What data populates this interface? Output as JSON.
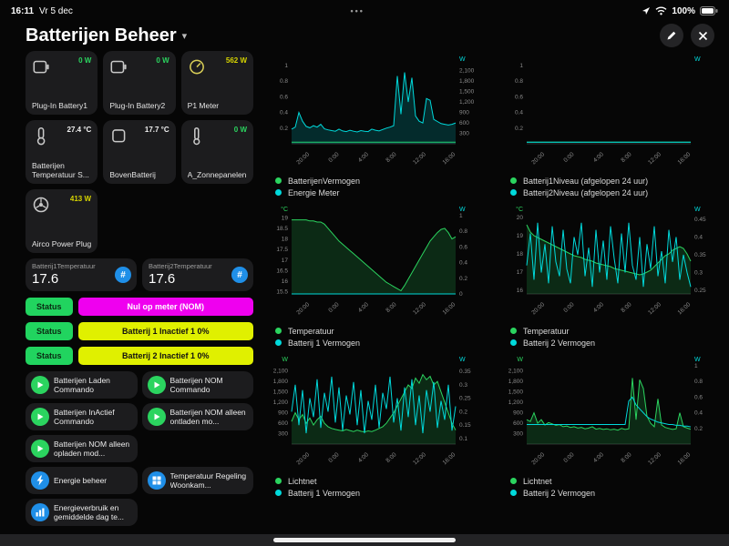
{
  "theme": {
    "green": "#2bd45f",
    "cyan": "#00d9db",
    "blue": "#1f8fe8",
    "card": "#1c1c1e",
    "tick": "#8b8b8b"
  },
  "status_bar": {
    "time": "16:11",
    "date": "Vr 5 dec",
    "dots": "•••",
    "battery_percent": "100%"
  },
  "header": {
    "title": "Batterijen Beheer"
  },
  "devices": [
    {
      "name": "Plug-In Battery1",
      "value": "0 W",
      "value_color": "#2bd45f"
    },
    {
      "name": "Plug-In Battery2",
      "value": "0 W",
      "value_color": "#2bd45f"
    },
    {
      "name": "P1 Meter",
      "value": "562 W",
      "value_color": "#d6d400"
    },
    {
      "name": "Batterijen Temperatuur S...",
      "value": "27.4 °C",
      "value_color": "#f0f0f0"
    },
    {
      "name": "BovenBatterij",
      "value": "17.7 °C",
      "value_color": "#f0f0f0"
    },
    {
      "name": "A_Zonnepanelen",
      "value": "0 W",
      "value_color": "#2bd45f"
    },
    {
      "name": "Airco Power Plug",
      "value": "413 W",
      "value_color": "#d6d400"
    }
  ],
  "sensors": [
    {
      "name": "Batterij1Temperatuur",
      "value": "17.6",
      "icon": "#"
    },
    {
      "name": "Batterij2Temperatuur",
      "value": "17.6",
      "icon": "#"
    }
  ],
  "statuses": [
    {
      "label": "Status",
      "value": "Nul op meter (NOM)",
      "bg": "#ef00ef",
      "fg": "#ffffff"
    },
    {
      "label": "Status",
      "value": "Batterij 1 Inactief 1 0%",
      "bg": "#e0f000",
      "fg": "#111111"
    },
    {
      "label": "Status",
      "value": "Batterij 2 Inactief 1 0%",
      "bg": "#e0f000",
      "fg": "#111111"
    }
  ],
  "status_pill": {
    "bg": "#21d45f",
    "fg": "#0a2a12"
  },
  "scripts": [
    {
      "label": "Batterijen Laden Commando"
    },
    {
      "label": "Batterijen NOM Commando"
    },
    {
      "label": "Batterijen InActief Commando"
    },
    {
      "label": "Batterijen NOM alleen ontladen mo..."
    },
    {
      "label": "Batterijen NOM alleen opladen mod..."
    }
  ],
  "nav": [
    {
      "label": "Energie beheer"
    },
    {
      "label": "Temperatuur Regeling Woonkam..."
    },
    {
      "label": "Energieverbruik en gemiddelde dag te..."
    }
  ],
  "chart_data": [
    {
      "type": "line",
      "x_ticks": [
        "20:00",
        "0:00",
        "4:00",
        "8:00",
        "12:00",
        "16:00"
      ],
      "left_axis": {
        "unit": "",
        "min": 0,
        "max": 1,
        "ticks": [
          "1",
          "0.8",
          "0.6",
          "0.4",
          "0.2"
        ]
      },
      "right_axis": {
        "unit": "W",
        "min": 0,
        "max": 2250,
        "ticks": [
          "2,100",
          "1,800",
          "1,500",
          "1,200",
          "900",
          "600",
          "300"
        ]
      },
      "series": [
        {
          "name": "BatterijenVermogen",
          "color": "green",
          "axis": "left",
          "fill": false,
          "values": [
            0.02,
            0.02
          ]
        },
        {
          "name": "Energie Meter",
          "color": "cyan",
          "axis": "right",
          "fill": true,
          "values": [
            420,
            480,
            900,
            650,
            500,
            460,
            520,
            480,
            560,
            430,
            400,
            380,
            360,
            420,
            370,
            350,
            390,
            360,
            340,
            380,
            360,
            350,
            420,
            390,
            370,
            410,
            450,
            480,
            520,
            1950,
            850,
            2050,
            1200,
            1900,
            800,
            650,
            600,
            1300,
            1250,
            700,
            640,
            580,
            560,
            540,
            560,
            600
          ]
        }
      ]
    },
    {
      "type": "line",
      "x_ticks": [
        "20:00",
        "0:00",
        "4:00",
        "8:00",
        "12:00",
        "16:00"
      ],
      "left_axis": {
        "unit": "",
        "min": 0,
        "max": 1,
        "ticks": [
          "1",
          "0.8",
          "0.6",
          "0.4",
          "0.2"
        ]
      },
      "right_axis": {
        "unit": "W",
        "min": 0,
        "max": 1,
        "ticks": []
      },
      "series": [
        {
          "name": "Batterij1Niveau (afgelopen 24 uur)",
          "color": "green",
          "axis": "left",
          "fill": false,
          "values": [
            0.02,
            0.02
          ]
        },
        {
          "name": "Batterij2Niveau (afgelopen 24 uur)",
          "color": "cyan",
          "axis": "left",
          "fill": false,
          "values": [
            0.02,
            0.02
          ]
        }
      ]
    },
    {
      "type": "line",
      "x_ticks": [
        "20:00",
        "0:00",
        "4:00",
        "8:00",
        "12:00",
        "16:00"
      ],
      "left_axis": {
        "unit": "°C",
        "min": 15.4,
        "max": 19.1,
        "ticks": [
          "19",
          "18.5",
          "18",
          "17.5",
          "17",
          "16.5",
          "16",
          "15.5"
        ]
      },
      "right_axis": {
        "unit": "W",
        "min": 0,
        "max": 1,
        "ticks": [
          "1",
          "0.8",
          "0.6",
          "0.4",
          "0.2",
          "0"
        ]
      },
      "series": [
        {
          "name": "Temperatuur",
          "color": "green",
          "axis": "left",
          "fill": true,
          "values": [
            18.9,
            18.9,
            18.9,
            18.9,
            18.9,
            18.85,
            18.85,
            18.8,
            18.8,
            18.7,
            18.5,
            18.3,
            18.1,
            17.9,
            17.75,
            17.6,
            17.45,
            17.3,
            17.15,
            17.0,
            16.85,
            16.7,
            16.55,
            16.4,
            16.25,
            16.1,
            15.95,
            15.85,
            15.75,
            15.65,
            15.55,
            15.8,
            16.1,
            16.4,
            16.7,
            17.0,
            17.3,
            17.6,
            17.9,
            18.1,
            18.3,
            18.45,
            18.5,
            18.3,
            18.0,
            18.1
          ]
        },
        {
          "name": "Batterij 1 Vermogen",
          "color": "cyan",
          "axis": "right",
          "fill": false,
          "values": [
            0,
            0
          ]
        }
      ]
    },
    {
      "type": "line",
      "x_ticks": [
        "20:00",
        "0:00",
        "4:00",
        "8:00",
        "12:00",
        "16:00"
      ],
      "left_axis": {
        "unit": "°C",
        "min": 15.8,
        "max": 20.1,
        "ticks": [
          "20",
          "19",
          "18",
          "17",
          "16"
        ]
      },
      "right_axis": {
        "unit": "W",
        "min": 0.24,
        "max": 0.46,
        "ticks": [
          "0.45",
          "0.4",
          "0.35",
          "0.3",
          "0.25"
        ]
      },
      "series": [
        {
          "name": "Temperatuur",
          "color": "green",
          "axis": "left",
          "fill": true,
          "values": [
            19.6,
            19.2,
            19.0,
            18.9,
            18.8,
            18.7,
            18.6,
            18.5,
            18.4,
            18.3,
            18.2,
            18.1,
            18.0,
            17.9,
            17.85,
            17.8,
            17.7,
            17.65,
            17.6,
            17.5,
            17.45,
            17.4,
            17.35,
            17.3,
            17.2,
            17.15,
            17.1,
            17.05,
            17.0,
            16.95,
            16.9,
            16.85,
            16.9,
            17.0,
            17.1,
            17.3,
            17.5,
            17.7,
            17.9,
            18.0,
            18.2,
            18.3,
            18.4,
            18.3,
            18.0,
            17.6
          ]
        },
        {
          "name": "Batterij 2 Vermogen",
          "color": "cyan",
          "axis": "right",
          "fill": false,
          "values": [
            0.32,
            0.41,
            0.28,
            0.44,
            0.3,
            0.38,
            0.27,
            0.43,
            0.33,
            0.29,
            0.42,
            0.31,
            0.27,
            0.4,
            0.35,
            0.44,
            0.29,
            0.37,
            0.26,
            0.42,
            0.3,
            0.39,
            0.28,
            0.43,
            0.34,
            0.27,
            0.41,
            0.3,
            0.44,
            0.32,
            0.28,
            0.4,
            0.26,
            0.38,
            0.31,
            0.43,
            0.29,
            0.36,
            0.27,
            0.42,
            0.33,
            0.4,
            0.28,
            0.35,
            0.3,
            0.26
          ]
        }
      ]
    },
    {
      "type": "line",
      "x_ticks": [
        "20:00",
        "0:00",
        "4:00",
        "8:00",
        "12:00",
        "16:00"
      ],
      "left_axis": {
        "unit": "W",
        "min": 0,
        "max": 2250,
        "ticks": [
          "2,100",
          "1,800",
          "1,500",
          "1,200",
          "900",
          "600",
          "300"
        ]
      },
      "right_axis": {
        "unit": "W",
        "min": 0.08,
        "max": 0.37,
        "ticks": [
          "0.35",
          "0.3",
          "0.25",
          "0.2",
          "0.15",
          "0.1"
        ]
      },
      "series": [
        {
          "name": "Lichtnet",
          "color": "green",
          "axis": "left",
          "fill": true,
          "values": [
            650,
            900,
            700,
            850,
            600,
            750,
            550,
            700,
            800,
            600,
            500,
            450,
            420,
            400,
            380,
            420,
            390,
            360,
            400,
            370,
            350,
            380,
            360,
            400,
            450,
            500,
            600,
            750,
            900,
            1100,
            1300,
            1500,
            1700,
            1600,
            1900,
            1750,
            2000,
            1850,
            1950,
            1700,
            1800,
            1500,
            1200,
            900,
            600,
            400
          ]
        },
        {
          "name": "Batterij 1 Vermogen",
          "color": "cyan",
          "axis": "right",
          "fill": false,
          "values": [
            0.2,
            0.3,
            0.15,
            0.28,
            0.12,
            0.25,
            0.18,
            0.32,
            0.14,
            0.27,
            0.2,
            0.33,
            0.16,
            0.29,
            0.13,
            0.26,
            0.19,
            0.31,
            0.15,
            0.28,
            0.12,
            0.24,
            0.17,
            0.3,
            0.14,
            0.27,
            0.21,
            0.33,
            0.16,
            0.25,
            0.13,
            0.29,
            0.18,
            0.32,
            0.15,
            0.26,
            0.12,
            0.28,
            0.2,
            0.31,
            0.14,
            0.24,
            0.17,
            0.3,
            0.13,
            0.22
          ]
        }
      ]
    },
    {
      "type": "line",
      "x_ticks": [
        "20:00",
        "0:00",
        "4:00",
        "8:00",
        "12:00",
        "16:00"
      ],
      "left_axis": {
        "unit": "W",
        "min": 0,
        "max": 2250,
        "ticks": [
          "2,100",
          "1,800",
          "1,500",
          "1,200",
          "900",
          "600",
          "300"
        ]
      },
      "right_axis": {
        "unit": "W",
        "min": 0,
        "max": 1,
        "ticks": [
          "1",
          "0.8",
          "0.6",
          "0.4",
          "0.2"
        ]
      },
      "series": [
        {
          "name": "Lichtnet",
          "color": "green",
          "axis": "left",
          "fill": true,
          "values": [
            700,
            650,
            900,
            600,
            700,
            550,
            620,
            580,
            540,
            560,
            500,
            520,
            480,
            500,
            460,
            480,
            440,
            460,
            500,
            430,
            450,
            420,
            440,
            410,
            430,
            400,
            450,
            420,
            440,
            1900,
            700,
            1850,
            1600,
            800,
            600,
            500,
            1300,
            550,
            480,
            450,
            420,
            440,
            900,
            500,
            460,
            430
          ]
        },
        {
          "name": "Batterij 2 Vermogen",
          "color": "cyan",
          "axis": "right",
          "fill": false,
          "values": [
            0.25,
            0.25,
            0.25,
            0.25,
            0.25,
            0.25,
            0.25,
            0.25,
            0.25,
            0.25,
            0.25,
            0.25,
            0.25,
            0.25,
            0.25,
            0.25,
            0.25,
            0.25,
            0.25,
            0.25,
            0.25,
            0.25,
            0.25,
            0.25,
            0.25,
            0.25,
            0.25,
            0.25,
            0.55,
            0.6,
            0.5,
            0.45,
            0.4,
            0.35,
            0.32,
            0.3,
            0.28,
            0.27,
            0.26,
            0.25,
            0.25,
            0.24,
            0.24,
            0.23,
            0.23,
            0.22
          ]
        }
      ]
    }
  ]
}
